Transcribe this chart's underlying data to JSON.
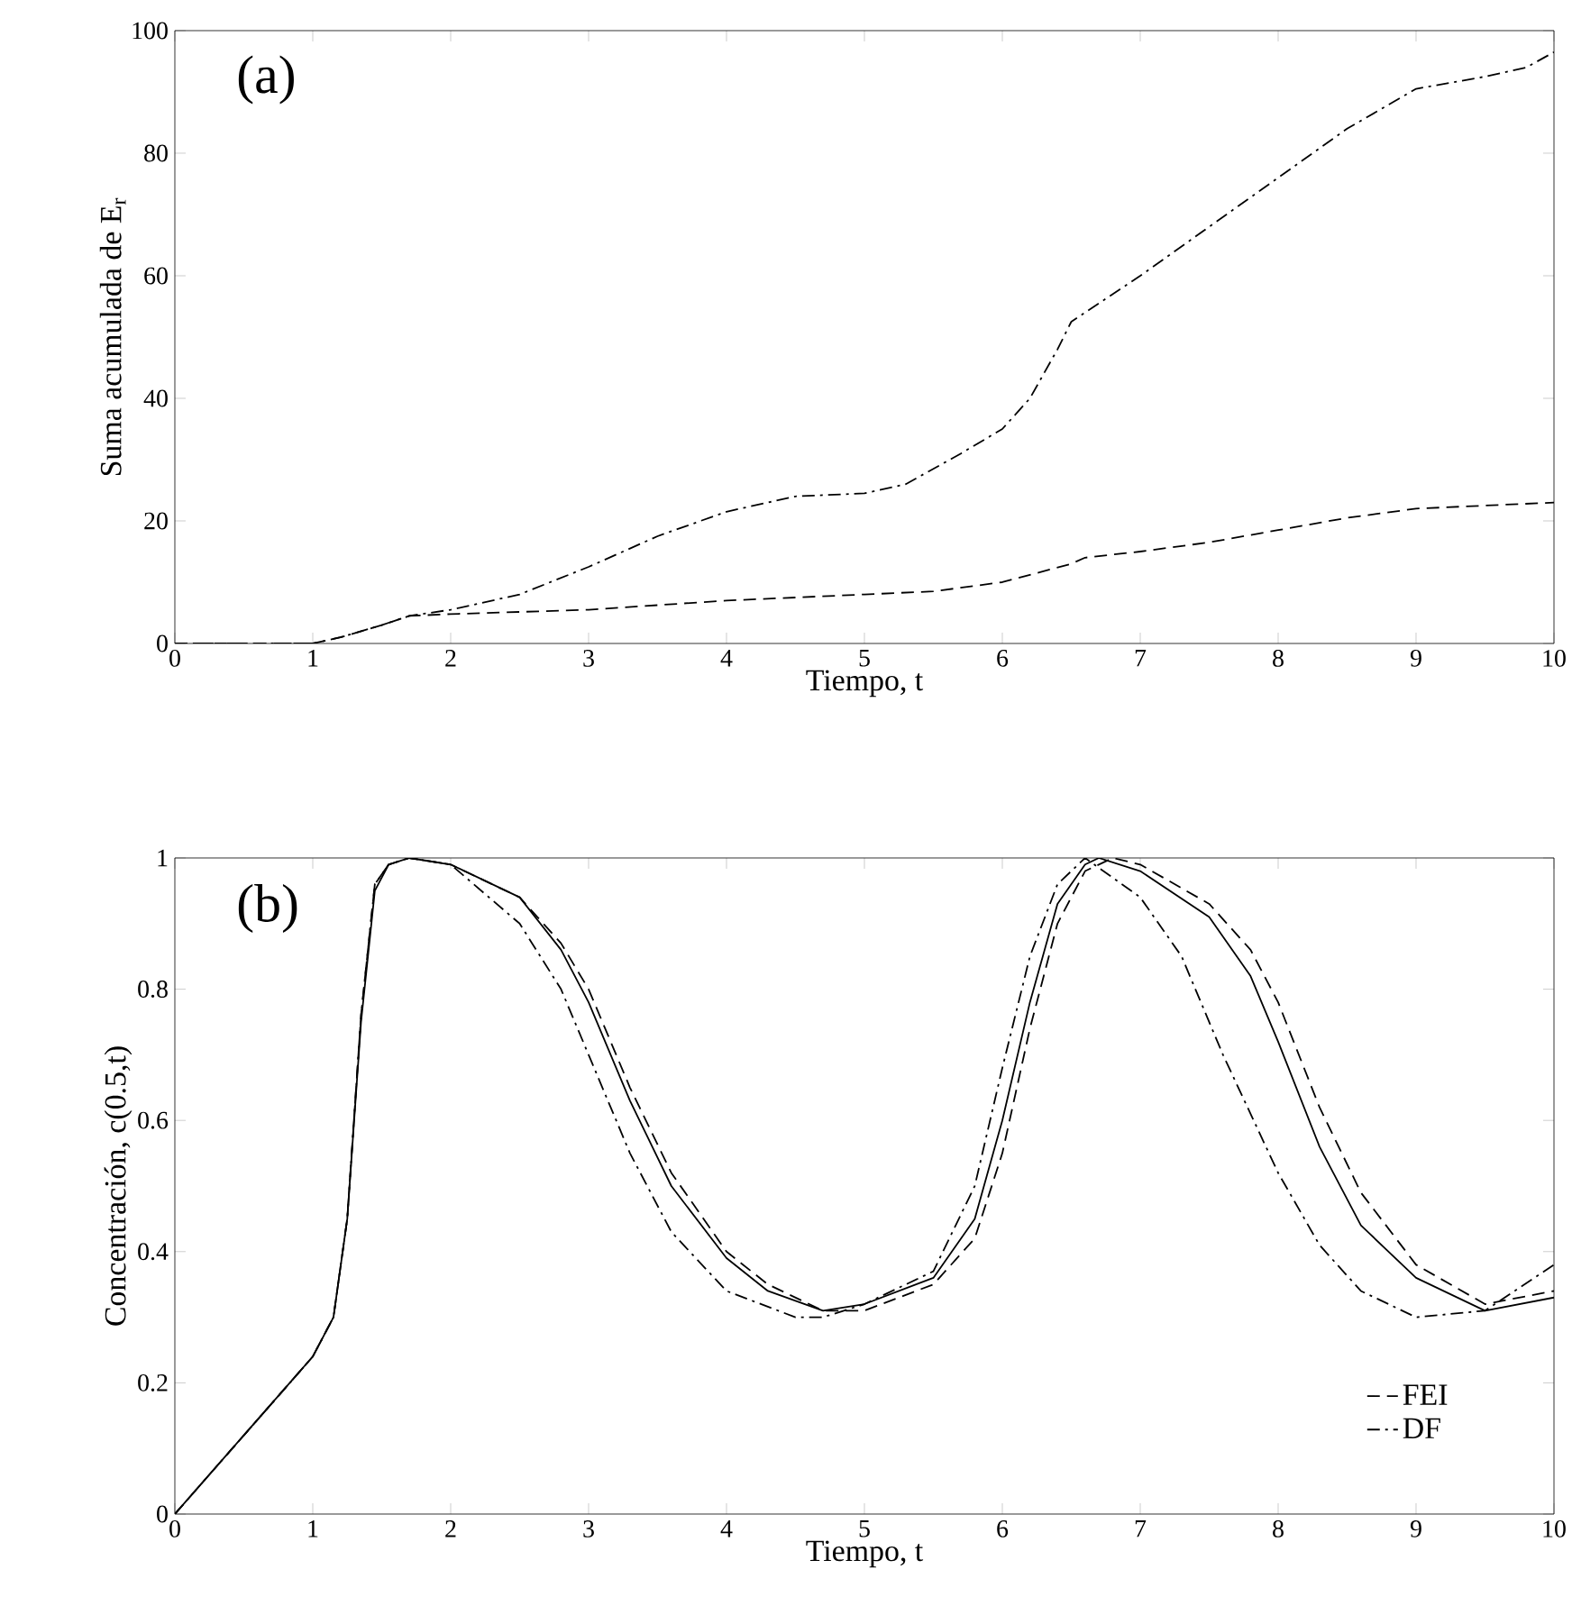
{
  "chart_data": [
    {
      "type": "line",
      "xlabel": "Tiempo, t",
      "ylabel": "Suma acumulada de E$_{r}$",
      "annotations": [
        "(a)"
      ],
      "xlim": [
        0,
        10
      ],
      "ylim": [
        0,
        100
      ],
      "xticks": [
        0,
        1,
        2,
        3,
        4,
        5,
        6,
        7,
        8,
        9,
        10
      ],
      "yticks": [
        0,
        20,
        40,
        60,
        80,
        100
      ],
      "grid": false,
      "legend": false,
      "x": [
        0,
        1,
        1.2,
        1.5,
        1.7,
        2,
        2.5,
        3,
        3.5,
        4,
        4.5,
        5,
        5.3,
        5.7,
        6,
        6.2,
        6.4,
        6.5,
        7,
        7.5,
        8,
        8.5,
        9,
        9.5,
        9.8,
        10
      ],
      "series": [
        {
          "color": "#000000",
          "line_style": "dashdot",
          "values": [
            0,
            0,
            1,
            3,
            4.5,
            5.5,
            8,
            12.5,
            17.5,
            21.5,
            24,
            24.5,
            26,
            31,
            35,
            40,
            48,
            52.5,
            60,
            68,
            76,
            84,
            90.5,
            92.5,
            94,
            96.5
          ]
        },
        {
          "color": "#000000",
          "line_style": "dashed",
          "x": [
            0,
            1,
            1.2,
            1.5,
            1.7,
            2,
            3,
            4,
            5,
            5.5,
            6,
            6.5,
            6.6,
            7,
            7.5,
            8,
            8.5,
            9,
            9.5,
            10
          ],
          "values": [
            0,
            0,
            1,
            3,
            4.5,
            4.8,
            5.5,
            7,
            8,
            8.5,
            10,
            13,
            14,
            15,
            16.5,
            18.5,
            20.5,
            22,
            22.5,
            23
          ]
        }
      ]
    },
    {
      "type": "line",
      "xlabel": "Tiempo, t",
      "ylabel": "Concentración, c(0.5,t)",
      "annotations": [
        "(b)"
      ],
      "xlim": [
        0,
        10
      ],
      "ylim": [
        0,
        1
      ],
      "xticks": [
        0,
        1,
        2,
        3,
        4,
        5,
        6,
        7,
        8,
        9,
        10
      ],
      "yticks": [
        0,
        0.2,
        0.4,
        0.6,
        0.8,
        1
      ],
      "grid": false,
      "legend": "bottom right",
      "x": [
        0,
        0.5,
        1,
        1.15,
        1.25,
        1.35,
        1.45,
        1.55,
        1.7,
        2,
        2.5,
        2.8,
        3,
        3.3,
        3.6,
        4,
        4.3,
        4.7,
        5,
        5.5,
        5.8,
        6,
        6.2,
        6.4,
        6.6,
        6.7,
        7,
        7.5,
        7.8,
        8,
        8.3,
        8.6,
        9,
        9.5,
        10
      ],
      "series": [
        {
          "color": "#000000",
          "line_style": "solid",
          "values": [
            0,
            0.12,
            0.24,
            0.3,
            0.45,
            0.75,
            0.95,
            0.99,
            1,
            0.99,
            0.94,
            0.86,
            0.78,
            0.63,
            0.5,
            0.39,
            0.34,
            0.31,
            0.32,
            0.36,
            0.45,
            0.6,
            0.78,
            0.93,
            0.99,
            1,
            0.98,
            0.91,
            0.82,
            0.72,
            0.56,
            0.44,
            0.36,
            0.31,
            0.33
          ]
        },
        {
          "name": "FEI",
          "color": "#000000",
          "line_style": "dashed",
          "x": [
            0,
            0.5,
            1,
            1.15,
            1.25,
            1.35,
            1.45,
            1.55,
            1.7,
            2,
            2.5,
            2.8,
            3,
            3.3,
            3.6,
            4,
            4.3,
            4.7,
            5,
            5.5,
            5.8,
            6,
            6.2,
            6.4,
            6.6,
            6.8,
            7,
            7.5,
            7.8,
            8,
            8.3,
            8.6,
            9,
            9.5,
            10
          ],
          "values": [
            0,
            0.12,
            0.24,
            0.3,
            0.45,
            0.76,
            0.96,
            0.99,
            1,
            0.99,
            0.94,
            0.87,
            0.8,
            0.65,
            0.52,
            0.4,
            0.35,
            0.31,
            0.31,
            0.35,
            0.42,
            0.55,
            0.74,
            0.9,
            0.98,
            1,
            0.99,
            0.93,
            0.86,
            0.78,
            0.62,
            0.49,
            0.38,
            0.32,
            0.34
          ]
        },
        {
          "name": "DF",
          "color": "#000000",
          "line_style": "dashdot",
          "x": [
            0,
            0.5,
            1,
            1.15,
            1.25,
            1.35,
            1.45,
            1.55,
            1.7,
            2,
            2.5,
            2.8,
            3,
            3.3,
            3.6,
            4,
            4.5,
            4.7,
            5,
            5.5,
            5.8,
            6,
            6.2,
            6.4,
            6.6,
            7,
            7.3,
            7.6,
            8,
            8.3,
            8.6,
            9,
            9.5,
            10
          ],
          "values": [
            0,
            0.12,
            0.24,
            0.3,
            0.45,
            0.76,
            0.96,
            0.99,
            1,
            0.99,
            0.9,
            0.8,
            0.7,
            0.55,
            0.43,
            0.34,
            0.3,
            0.3,
            0.32,
            0.37,
            0.5,
            0.68,
            0.85,
            0.96,
            1,
            0.94,
            0.85,
            0.7,
            0.52,
            0.41,
            0.34,
            0.3,
            0.31,
            0.38
          ]
        }
      ]
    }
  ]
}
